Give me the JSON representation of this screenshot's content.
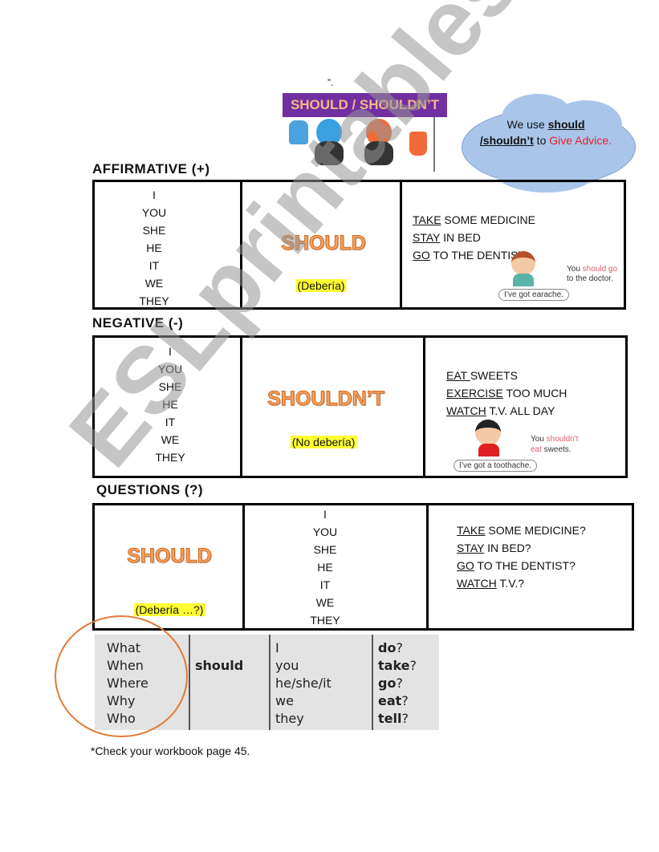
{
  "top_mark": "”.",
  "sign": {
    "title": "SHOULD / SHOULDN’T",
    "banner_color": "#7030a0",
    "text_color": "#f8b48a"
  },
  "cloud": {
    "text_1": "We use ",
    "bold_1": "should",
    "bold_2": "/shouldn’t",
    "text_2": " to ",
    "red_text": "Give Advice.",
    "color": "#a9c6ea",
    "red": "#e8202a"
  },
  "sections": {
    "affirmative": "AFFIRMATIVE (+)",
    "negative": "NEGATIVE (-)",
    "questions": "QUESTIONS (?)"
  },
  "pronouns": [
    "I",
    "YOU",
    "SHE",
    "HE",
    "IT",
    "WE",
    "THEY"
  ],
  "affirmative": {
    "modal": "SHOULD",
    "translation": "(Debería)",
    "verbs": [
      {
        "u": "TAKE",
        "rest": " SOME MEDICINE"
      },
      {
        "u": "STAY",
        "rest": " IN BED"
      },
      {
        "u": "GO",
        "rest": " TO THE DENTIST"
      }
    ],
    "caption_1": "You ",
    "caption_red": "should go",
    "caption_2": "to the doctor.",
    "bubble": "I’ve got earache."
  },
  "negative": {
    "modal": "SHOULDN’T",
    "translation": "(No debería)",
    "verbs": [
      {
        "u": "EAT ",
        "rest": "SWEETS"
      },
      {
        "u": "EXERCISE",
        "rest": " TOO MUCH"
      },
      {
        "u": "WATCH",
        "rest": " T.V. ALL DAY"
      }
    ],
    "caption_1": "You ",
    "caption_red": "shouldn't",
    "caption_red_2": "eat",
    "caption_2": " sweets.",
    "bubble": "I’ve got a toothache."
  },
  "questions": {
    "modal": "SHOULD",
    "translation": "(Debería …?)",
    "verbs": [
      {
        "u": "TAKE",
        "rest": " SOME MEDICINE?"
      },
      {
        "u": "STAY",
        "rest": " IN BED?"
      },
      {
        "u": "GO",
        "rest": " TO THE DENTIST?"
      },
      {
        "u": "WATCH",
        "rest": " T.V.?"
      }
    ]
  },
  "wh_table": {
    "wh": [
      "What",
      "When",
      "Where",
      "Why",
      "Who"
    ],
    "modal": "should",
    "subjects": [
      "I",
      "you",
      "he/she/it",
      "we",
      "they"
    ],
    "verbs": [
      "do",
      "take",
      "go",
      "eat",
      "tell"
    ],
    "qmark": "?"
  },
  "footer": "*Check your workbook page 45.",
  "watermark": "ESLprintables.com"
}
